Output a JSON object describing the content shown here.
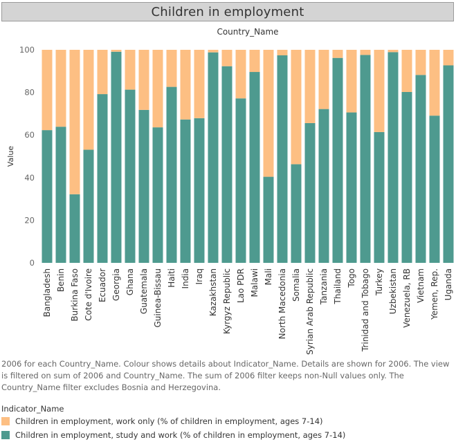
{
  "title": "Children in employment",
  "chart_data": {
    "type": "bar",
    "stacked": true,
    "column_header": "Country_Name",
    "ylabel": "Value",
    "ylim": [
      0,
      100
    ],
    "yticks": [
      0,
      20,
      40,
      60,
      80,
      100
    ],
    "grid": false,
    "categories": [
      "Bangladesh",
      "Benin",
      "Burkina Faso",
      "Cote d'Ivoire",
      "Ecuador",
      "Georgia",
      "Ghana",
      "Guatemala",
      "Guinea-Bissau",
      "Haiti",
      "India",
      "Iraq",
      "Kazakhstan",
      "Kyrgyz Republic",
      "Lao PDR",
      "Malawi",
      "Mali",
      "North Macedonia",
      "Somalia",
      "Syrian Arab Republic",
      "Tanzania",
      "Thailand",
      "Togo",
      "Trinidad and Tobago",
      "Turkey",
      "Uzbekistan",
      "Venezuela, RB",
      "Vietnam",
      "Yemen, Rep.",
      "Uganda"
    ],
    "series": [
      {
        "name": "Children in employment, study and work (% of children in employment, ages 7-14)",
        "color": "#4e9a8f",
        "values": [
          62.3,
          63.9,
          32.2,
          53.1,
          79.2,
          99.1,
          81.3,
          71.8,
          63.6,
          82.6,
          67.3,
          67.9,
          98.8,
          92.3,
          77.2,
          89.6,
          40.4,
          97.4,
          46.3,
          65.6,
          72.2,
          96.2,
          70.6,
          97.6,
          61.4,
          98.9,
          80.2,
          88.2,
          69.1,
          92.7
        ]
      },
      {
        "name": "Children in employment, work only (% of children in employment, ages 7-14)",
        "color": "#fdbf83",
        "values": [
          37.7,
          36.1,
          67.8,
          46.9,
          20.8,
          0.9,
          18.7,
          28.2,
          36.4,
          17.4,
          32.7,
          32.1,
          1.2,
          7.7,
          22.8,
          10.4,
          59.6,
          2.6,
          53.7,
          34.4,
          27.8,
          3.8,
          29.4,
          2.4,
          38.6,
          1.1,
          19.8,
          11.8,
          30.9,
          7.3
        ]
      }
    ]
  },
  "caption": "2006 for each Country_Name.  Colour shows details about Indicator_Name.  Details are shown for 2006. The view is filtered on sum of 2006 and Country_Name. The sum of 2006 filter keeps non-Null values only. The Country_Name filter excludes Bosnia and Herzegovina.",
  "legend": {
    "title": "Indicator_Name",
    "items": [
      {
        "label": "Children in employment, work only (% of children in employment, ages 7-14)",
        "color": "#fdbf83"
      },
      {
        "label": "Children in employment, study and work (% of children in employment, ages 7-14)",
        "color": "#4e9a8f"
      }
    ]
  }
}
